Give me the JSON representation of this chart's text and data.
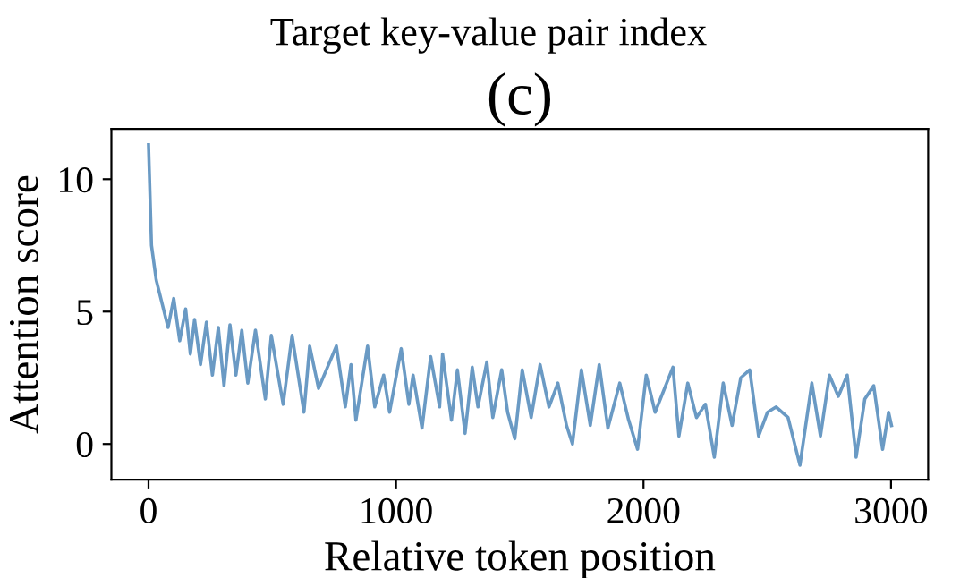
{
  "chart_data": {
    "type": "line",
    "title": "(c)",
    "annotations": [
      "Target key-value pair index"
    ],
    "xlabel": "Relative token position",
    "ylabel": "Attention score",
    "xlim": [
      -150,
      3150
    ],
    "ylim": [
      -1.35,
      11.9
    ],
    "xticks": [
      0,
      1000,
      2000,
      3000
    ],
    "yticks": [
      0,
      5,
      10
    ],
    "grid": false,
    "legend": false,
    "marker": "none",
    "line_style": "solid",
    "series": [
      {
        "color": "#6a9ac4",
        "x": [
          0,
          12,
          31,
          55,
          79,
          102,
          126,
          150,
          169,
          186,
          210,
          234,
          258,
          282,
          305,
          329,
          353,
          377,
          401,
          432,
          472,
          496,
          544,
          580,
          628,
          651,
          687,
          759,
          795,
          818,
          838,
          885,
          914,
          950,
          974,
          1021,
          1052,
          1069,
          1105,
          1140,
          1176,
          1188,
          1224,
          1248,
          1279,
          1308,
          1331,
          1367,
          1391,
          1427,
          1451,
          1480,
          1510,
          1546,
          1582,
          1618,
          1654,
          1689,
          1713,
          1749,
          1785,
          1821,
          1856,
          1904,
          1940,
          1976,
          2011,
          2047,
          2119,
          2143,
          2179,
          2214,
          2250,
          2286,
          2322,
          2358,
          2393,
          2429,
          2465,
          2501,
          2536,
          2584,
          2632,
          2680,
          2715,
          2751,
          2787,
          2823,
          2859,
          2894,
          2930,
          2966,
          2990,
          3002
        ],
        "values": [
          11.3,
          7.5,
          6.2,
          5.3,
          4.4,
          5.5,
          3.9,
          5.1,
          3.4,
          4.7,
          3.0,
          4.6,
          2.6,
          4.4,
          2.2,
          4.5,
          2.6,
          4.3,
          2.3,
          4.3,
          1.7,
          4.1,
          1.5,
          4.1,
          1.2,
          3.7,
          2.1,
          3.7,
          1.4,
          3.0,
          0.9,
          3.7,
          1.4,
          2.6,
          1.2,
          3.6,
          1.5,
          2.6,
          0.6,
          3.3,
          1.4,
          3.4,
          0.9,
          2.8,
          0.4,
          2.9,
          1.4,
          3.1,
          1.0,
          2.8,
          1.2,
          0.2,
          2.8,
          1.0,
          3.0,
          1.4,
          2.3,
          0.7,
          0.0,
          2.8,
          0.7,
          3.0,
          0.6,
          2.3,
          0.9,
          -0.2,
          2.6,
          1.2,
          2.9,
          0.3,
          2.3,
          1.0,
          1.5,
          -0.5,
          2.3,
          0.7,
          2.5,
          2.8,
          0.3,
          1.2,
          1.4,
          1.0,
          -0.8,
          2.3,
          0.3,
          2.6,
          1.8,
          2.6,
          -0.5,
          1.7,
          2.2,
          -0.2,
          1.2,
          0.7
        ]
      }
    ]
  }
}
